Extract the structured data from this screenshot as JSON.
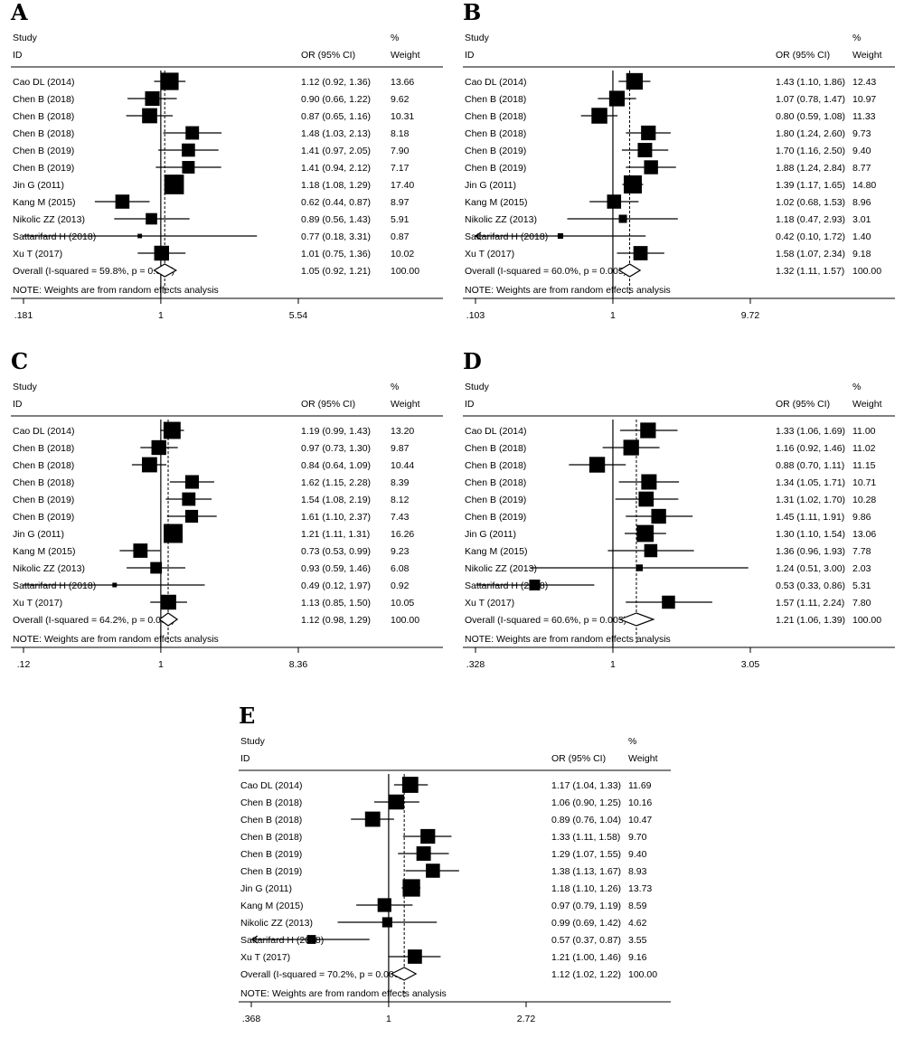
{
  "figure": {
    "panels": [
      {
        "label": "A",
        "header": {
          "study": "Study",
          "id": "ID",
          "or_ci": "OR (95% CI)",
          "pct": "%",
          "weight": "Weight"
        },
        "note": "NOTE: Weights are from random effects analysis",
        "axis_ticks": [
          {
            "value": 0.181,
            "label": ".181"
          },
          {
            "value": 1,
            "label": "1"
          },
          {
            "value": 5.54,
            "label": "5.54"
          }
        ],
        "xlim": [
          0.181,
          5.54
        ],
        "rows": [
          {
            "study": "Cao DL (2014)",
            "or": 1.12,
            "lo": 0.92,
            "hi": 1.36,
            "ci_text": "1.12 (0.92, 1.36)",
            "weight": "13.66"
          },
          {
            "study": "Chen B (2018)",
            "or": 0.9,
            "lo": 0.66,
            "hi": 1.22,
            "ci_text": "0.90 (0.66, 1.22)",
            "weight": "9.62"
          },
          {
            "study": "Chen B (2018)",
            "or": 0.87,
            "lo": 0.65,
            "hi": 1.16,
            "ci_text": "0.87 (0.65, 1.16)",
            "weight": "10.31"
          },
          {
            "study": "Chen B (2018)",
            "or": 1.48,
            "lo": 1.03,
            "hi": 2.13,
            "ci_text": "1.48 (1.03, 2.13)",
            "weight": "8.18"
          },
          {
            "study": "Chen B (2019)",
            "or": 1.41,
            "lo": 0.97,
            "hi": 2.05,
            "ci_text": "1.41 (0.97, 2.05)",
            "weight": "7.90"
          },
          {
            "study": "Chen B (2019)",
            "or": 1.41,
            "lo": 0.94,
            "hi": 2.12,
            "ci_text": "1.41 (0.94, 2.12)",
            "weight": "7.17"
          },
          {
            "study": "Jin G (2011)",
            "or": 1.18,
            "lo": 1.08,
            "hi": 1.29,
            "ci_text": "1.18 (1.08, 1.29)",
            "weight": "17.40"
          },
          {
            "study": "Kang M (2015)",
            "or": 0.62,
            "lo": 0.44,
            "hi": 0.87,
            "ci_text": "0.62 (0.44, 0.87)",
            "weight": "8.97"
          },
          {
            "study": "Nikolic ZZ (2013)",
            "or": 0.89,
            "lo": 0.56,
            "hi": 1.43,
            "ci_text": "0.89 (0.56, 1.43)",
            "weight": "5.91"
          },
          {
            "study": "Sattarifard H (2018)",
            "or": 0.77,
            "lo": 0.18,
            "hi": 3.31,
            "ci_text": "0.77 (0.18, 3.31)",
            "weight": "0.87"
          },
          {
            "study": "Xu T (2017)",
            "or": 1.01,
            "lo": 0.75,
            "hi": 1.36,
            "ci_text": "1.01 (0.75, 1.36)",
            "weight": "10.02"
          }
        ],
        "overall": {
          "label": "Overall  (I-squared = 59.8%, p = 0.006)",
          "or": 1.05,
          "lo": 0.92,
          "hi": 1.21,
          "ci_text": "1.05 (0.92, 1.21)",
          "weight": "100.00"
        }
      },
      {
        "label": "B",
        "header": {
          "study": "Study",
          "id": "ID",
          "or_ci": "OR (95% CI)",
          "pct": "%",
          "weight": "Weight"
        },
        "note": "NOTE: Weights are from random effects analysis",
        "axis_ticks": [
          {
            "value": 0.103,
            "label": ".103"
          },
          {
            "value": 1,
            "label": "1"
          },
          {
            "value": 9.72,
            "label": "9.72"
          }
        ],
        "xlim": [
          0.103,
          9.72
        ],
        "rows": [
          {
            "study": "Cao DL (2014)",
            "or": 1.43,
            "lo": 1.1,
            "hi": 1.86,
            "ci_text": "1.43 (1.10, 1.86)",
            "weight": "12.43"
          },
          {
            "study": "Chen B (2018)",
            "or": 1.07,
            "lo": 0.78,
            "hi": 1.47,
            "ci_text": "1.07 (0.78, 1.47)",
            "weight": "10.97"
          },
          {
            "study": "Chen B (2018)",
            "or": 0.8,
            "lo": 0.59,
            "hi": 1.08,
            "ci_text": "0.80 (0.59, 1.08)",
            "weight": "11.33"
          },
          {
            "study": "Chen B (2018)",
            "or": 1.8,
            "lo": 1.24,
            "hi": 2.6,
            "ci_text": "1.80 (1.24, 2.60)",
            "weight": "9.73"
          },
          {
            "study": "Chen B (2019)",
            "or": 1.7,
            "lo": 1.16,
            "hi": 2.5,
            "ci_text": "1.70 (1.16, 2.50)",
            "weight": "9.40"
          },
          {
            "study": "Chen B (2019)",
            "or": 1.88,
            "lo": 1.24,
            "hi": 2.84,
            "ci_text": "1.88 (1.24, 2.84)",
            "weight": "8.77"
          },
          {
            "study": "Jin G (2011)",
            "or": 1.39,
            "lo": 1.17,
            "hi": 1.65,
            "ci_text": "1.39 (1.17, 1.65)",
            "weight": "14.80"
          },
          {
            "study": "Kang M (2015)",
            "or": 1.02,
            "lo": 0.68,
            "hi": 1.53,
            "ci_text": "1.02 (0.68, 1.53)",
            "weight": "8.96"
          },
          {
            "study": "Nikolic ZZ (2013)",
            "or": 1.18,
            "lo": 0.47,
            "hi": 2.93,
            "ci_text": "1.18 (0.47, 2.93)",
            "weight": "3.01"
          },
          {
            "study": "Sattarifard H (2018)",
            "or": 0.42,
            "lo": 0.1,
            "hi": 1.72,
            "ci_text": "0.42 (0.10, 1.72)",
            "weight": "1.40",
            "arrow_left": true
          },
          {
            "study": "Xu T (2017)",
            "or": 1.58,
            "lo": 1.07,
            "hi": 2.34,
            "ci_text": "1.58 (1.07, 2.34)",
            "weight": "9.18"
          }
        ],
        "overall": {
          "label": "Overall  (I-squared = 60.0%, p = 0.005)",
          "or": 1.32,
          "lo": 1.11,
          "hi": 1.57,
          "ci_text": "1.32 (1.11, 1.57)",
          "weight": "100.00"
        }
      },
      {
        "label": "C",
        "header": {
          "study": "Study",
          "id": "ID",
          "or_ci": "OR (95% CI)",
          "pct": "%",
          "weight": "Weight"
        },
        "note": "NOTE: Weights are from random effects analysis",
        "axis_ticks": [
          {
            "value": 0.12,
            "label": ".12"
          },
          {
            "value": 1,
            "label": "1"
          },
          {
            "value": 8.36,
            "label": "8.36"
          }
        ],
        "xlim": [
          0.12,
          8.36
        ],
        "rows": [
          {
            "study": "Cao DL (2014)",
            "or": 1.19,
            "lo": 0.99,
            "hi": 1.43,
            "ci_text": "1.19 (0.99, 1.43)",
            "weight": "13.20"
          },
          {
            "study": "Chen B (2018)",
            "or": 0.97,
            "lo": 0.73,
            "hi": 1.3,
            "ci_text": "0.97 (0.73, 1.30)",
            "weight": "9.87"
          },
          {
            "study": "Chen B (2018)",
            "or": 0.84,
            "lo": 0.64,
            "hi": 1.09,
            "ci_text": "0.84 (0.64, 1.09)",
            "weight": "10.44"
          },
          {
            "study": "Chen B (2018)",
            "or": 1.62,
            "lo": 1.15,
            "hi": 2.28,
            "ci_text": "1.62 (1.15, 2.28)",
            "weight": "8.39"
          },
          {
            "study": "Chen B (2019)",
            "or": 1.54,
            "lo": 1.08,
            "hi": 2.19,
            "ci_text": "1.54 (1.08, 2.19)",
            "weight": "8.12"
          },
          {
            "study": "Chen B (2019)",
            "or": 1.61,
            "lo": 1.1,
            "hi": 2.37,
            "ci_text": "1.61 (1.10, 2.37)",
            "weight": "7.43"
          },
          {
            "study": "Jin G (2011)",
            "or": 1.21,
            "lo": 1.11,
            "hi": 1.31,
            "ci_text": "1.21 (1.11, 1.31)",
            "weight": "16.26"
          },
          {
            "study": "Kang M (2015)",
            "or": 0.73,
            "lo": 0.53,
            "hi": 0.99,
            "ci_text": "0.73 (0.53, 0.99)",
            "weight": "9.23"
          },
          {
            "study": "Nikolic ZZ (2013)",
            "or": 0.93,
            "lo": 0.59,
            "hi": 1.46,
            "ci_text": "0.93 (0.59, 1.46)",
            "weight": "6.08"
          },
          {
            "study": "Sattarifard H (2018)",
            "or": 0.49,
            "lo": 0.12,
            "hi": 1.97,
            "ci_text": "0.49 (0.12, 1.97)",
            "weight": "0.92"
          },
          {
            "study": "Xu T (2017)",
            "or": 1.13,
            "lo": 0.85,
            "hi": 1.5,
            "ci_text": "1.13 (0.85, 1.50)",
            "weight": "10.05"
          }
        ],
        "overall": {
          "label": "Overall  (I-squared = 64.2%, p = 0.002)",
          "or": 1.12,
          "lo": 0.98,
          "hi": 1.29,
          "ci_text": "1.12 (0.98, 1.29)",
          "weight": "100.00"
        }
      },
      {
        "label": "D",
        "header": {
          "study": "Study",
          "id": "ID",
          "or_ci": "OR (95% CI)",
          "pct": "%",
          "weight": "Weight"
        },
        "note": "NOTE: Weights are from random effects analysis",
        "axis_ticks": [
          {
            "value": 0.328,
            "label": ".328"
          },
          {
            "value": 1,
            "label": "1"
          },
          {
            "value": 3.05,
            "label": "3.05"
          }
        ],
        "xlim": [
          0.328,
          3.05
        ],
        "rows": [
          {
            "study": "Cao DL (2014)",
            "or": 1.33,
            "lo": 1.06,
            "hi": 1.69,
            "ci_text": "1.33 (1.06, 1.69)",
            "weight": "11.00"
          },
          {
            "study": "Chen B (2018)",
            "or": 1.16,
            "lo": 0.92,
            "hi": 1.46,
            "ci_text": "1.16 (0.92, 1.46)",
            "weight": "11.02"
          },
          {
            "study": "Chen B (2018)",
            "or": 0.88,
            "lo": 0.7,
            "hi": 1.11,
            "ci_text": "0.88 (0.70, 1.11)",
            "weight": "11.15"
          },
          {
            "study": "Chen B (2018)",
            "or": 1.34,
            "lo": 1.05,
            "hi": 1.71,
            "ci_text": "1.34 (1.05, 1.71)",
            "weight": "10.71"
          },
          {
            "study": "Chen B (2019)",
            "or": 1.31,
            "lo": 1.02,
            "hi": 1.7,
            "ci_text": "1.31 (1.02, 1.70)",
            "weight": "10.28"
          },
          {
            "study": "Chen B (2019)",
            "or": 1.45,
            "lo": 1.11,
            "hi": 1.91,
            "ci_text": "1.45 (1.11, 1.91)",
            "weight": "9.86"
          },
          {
            "study": "Jin G (2011)",
            "or": 1.3,
            "lo": 1.1,
            "hi": 1.54,
            "ci_text": "1.30 (1.10, 1.54)",
            "weight": "13.06"
          },
          {
            "study": "Kang M (2015)",
            "or": 1.36,
            "lo": 0.96,
            "hi": 1.93,
            "ci_text": "1.36 (0.96, 1.93)",
            "weight": "7.78"
          },
          {
            "study": "Nikolic ZZ (2013)",
            "or": 1.24,
            "lo": 0.51,
            "hi": 3.0,
            "ci_text": "1.24 (0.51, 3.00)",
            "weight": "2.03"
          },
          {
            "study": "Sattarifard H (2018)",
            "or": 0.53,
            "lo": 0.33,
            "hi": 0.86,
            "ci_text": "0.53 (0.33, 0.86)",
            "weight": "5.31"
          },
          {
            "study": "Xu T (2017)",
            "or": 1.57,
            "lo": 1.11,
            "hi": 2.24,
            "ci_text": "1.57 (1.11, 2.24)",
            "weight": "7.80"
          }
        ],
        "overall": {
          "label": "Overall  (I-squared = 60.6%, p = 0.005)",
          "or": 1.21,
          "lo": 1.06,
          "hi": 1.39,
          "ci_text": "1.21 (1.06, 1.39)",
          "weight": "100.00"
        }
      },
      {
        "label": "E",
        "header": {
          "study": "Study",
          "id": "ID",
          "or_ci": "OR (95% CI)",
          "pct": "%",
          "weight": "Weight"
        },
        "note": "NOTE: Weights are from random effects analysis",
        "axis_ticks": [
          {
            "value": 0.368,
            "label": ".368"
          },
          {
            "value": 1,
            "label": "1"
          },
          {
            "value": 2.72,
            "label": "2.72"
          }
        ],
        "xlim": [
          0.368,
          2.72
        ],
        "rows": [
          {
            "study": "Cao DL (2014)",
            "or": 1.17,
            "lo": 1.04,
            "hi": 1.33,
            "ci_text": "1.17 (1.04, 1.33)",
            "weight": "11.69"
          },
          {
            "study": "Chen B (2018)",
            "or": 1.06,
            "lo": 0.9,
            "hi": 1.25,
            "ci_text": "1.06 (0.90, 1.25)",
            "weight": "10.16"
          },
          {
            "study": "Chen B (2018)",
            "or": 0.89,
            "lo": 0.76,
            "hi": 1.04,
            "ci_text": "0.89 (0.76, 1.04)",
            "weight": "10.47"
          },
          {
            "study": "Chen B (2018)",
            "or": 1.33,
            "lo": 1.11,
            "hi": 1.58,
            "ci_text": "1.33 (1.11, 1.58)",
            "weight": "9.70"
          },
          {
            "study": "Chen B (2019)",
            "or": 1.29,
            "lo": 1.07,
            "hi": 1.55,
            "ci_text": "1.29 (1.07, 1.55)",
            "weight": "9.40"
          },
          {
            "study": "Chen B (2019)",
            "or": 1.38,
            "lo": 1.13,
            "hi": 1.67,
            "ci_text": "1.38 (1.13, 1.67)",
            "weight": "8.93"
          },
          {
            "study": "Jin G (2011)",
            "or": 1.18,
            "lo": 1.1,
            "hi": 1.26,
            "ci_text": "1.18 (1.10, 1.26)",
            "weight": "13.73"
          },
          {
            "study": "Kang M (2015)",
            "or": 0.97,
            "lo": 0.79,
            "hi": 1.19,
            "ci_text": "0.97 (0.79, 1.19)",
            "weight": "8.59"
          },
          {
            "study": "Nikolic ZZ (2013)",
            "or": 0.99,
            "lo": 0.69,
            "hi": 1.42,
            "ci_text": "0.99 (0.69, 1.42)",
            "weight": "4.62"
          },
          {
            "study": "Sattarifard H (2018)",
            "or": 0.57,
            "lo": 0.37,
            "hi": 0.87,
            "ci_text": "0.57 (0.37, 0.87)",
            "weight": "3.55",
            "arrow_left": true
          },
          {
            "study": "Xu T (2017)",
            "or": 1.21,
            "lo": 1.0,
            "hi": 1.46,
            "ci_text": "1.21 (1.00, 1.46)",
            "weight": "9.16"
          }
        ],
        "overall": {
          "label": "Overall  (I-squared = 70.2%, p = 0.000)",
          "or": 1.12,
          "lo": 1.02,
          "hi": 1.22,
          "ci_text": "1.12 (1.02, 1.22)",
          "weight": "100.00"
        }
      }
    ]
  },
  "chart_data": [
    {
      "type": "forest",
      "panel": "A",
      "scale": "log",
      "xlim": [
        0.181,
        5.54
      ],
      "null_line": 1,
      "pooled_or": 1.05
    },
    {
      "type": "forest",
      "panel": "B",
      "scale": "log",
      "xlim": [
        0.103,
        9.72
      ],
      "null_line": 1,
      "pooled_or": 1.32
    },
    {
      "type": "forest",
      "panel": "C",
      "scale": "log",
      "xlim": [
        0.12,
        8.36
      ],
      "null_line": 1,
      "pooled_or": 1.12
    },
    {
      "type": "forest",
      "panel": "D",
      "scale": "log",
      "xlim": [
        0.328,
        3.05
      ],
      "null_line": 1,
      "pooled_or": 1.21
    },
    {
      "type": "forest",
      "panel": "E",
      "scale": "log",
      "xlim": [
        0.368,
        2.72
      ],
      "null_line": 1,
      "pooled_or": 1.12
    }
  ]
}
